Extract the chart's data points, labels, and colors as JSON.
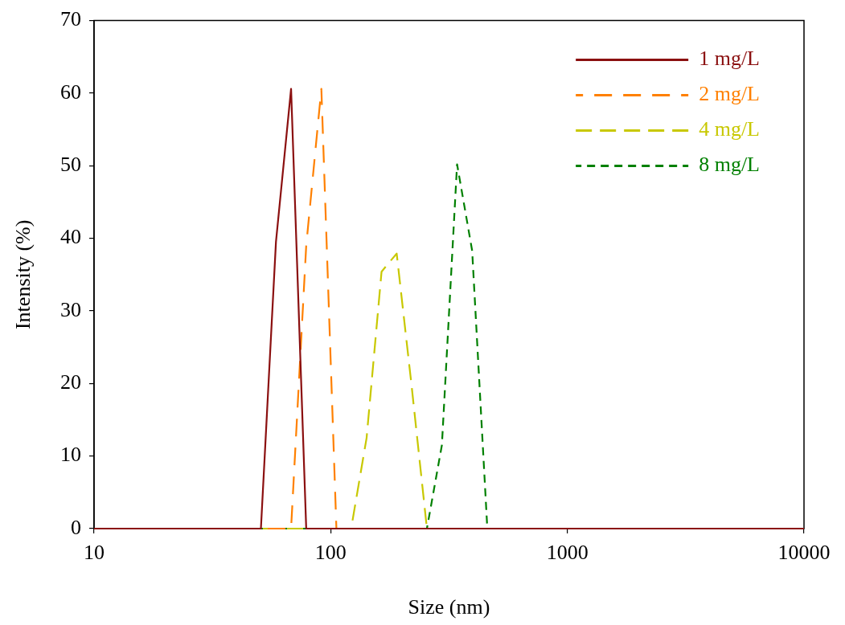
{
  "chart_data": {
    "type": "line",
    "xlabel": "Size (nm)",
    "ylabel": "Intensity (%)",
    "log": "x",
    "xlim": [
      10,
      10000
    ],
    "xticks": [
      10,
      100,
      1000,
      10000
    ],
    "ylim": [
      0,
      70
    ],
    "yticks": [
      0,
      10,
      20,
      30,
      40,
      50,
      60,
      70
    ],
    "grid": false,
    "legend": "top right",
    "marker": "none",
    "series": [
      {
        "name": "1 mg/L",
        "color": "#8b1010",
        "line_style": "solid",
        "x": [
          10,
          50.7,
          58.7,
          68.0,
          78.8,
          10000
        ],
        "values": [
          0,
          0,
          39.5,
          60.6,
          0,
          0
        ]
      },
      {
        "name": "2 mg/L",
        "color": "#ff8000",
        "line_style": "dashed",
        "x": [
          10,
          68.0,
          78.8,
          91.3,
          105.7,
          10000
        ],
        "values": [
          0,
          0,
          39,
          60.6,
          0,
          0
        ]
      },
      {
        "name": "4 mg/L",
        "color": "#c8c800",
        "line_style": "dashed",
        "x": [
          10,
          122,
          141.8,
          164,
          190,
          220,
          255,
          10000
        ],
        "values": [
          0,
          0,
          12.5,
          35.4,
          37.9,
          19.5,
          0,
          0
        ]
      },
      {
        "name": "8 mg/L",
        "color": "#008000",
        "line_style": "dashed",
        "x": [
          10,
          255,
          295,
          342,
          396,
          459,
          10000
        ],
        "values": [
          0,
          0,
          11.5,
          50.2,
          38.3,
          0,
          0
        ]
      }
    ]
  }
}
